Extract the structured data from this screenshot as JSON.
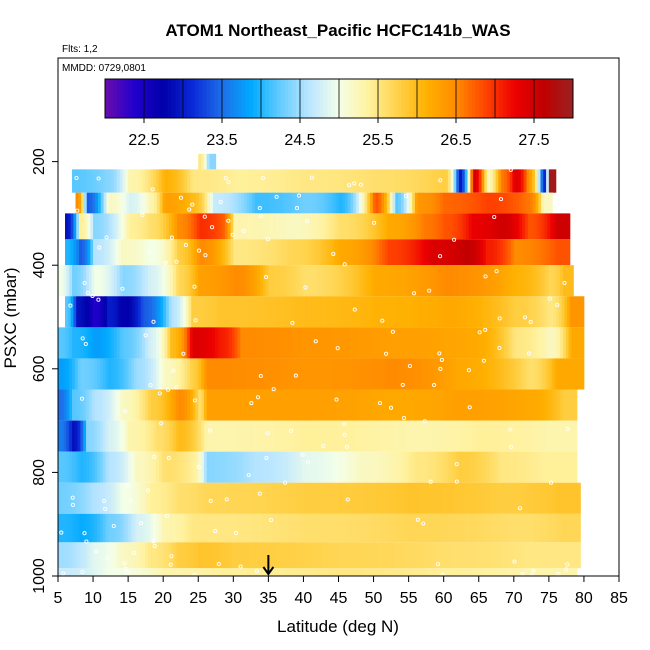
{
  "chart_data": {
    "type": "heatmap",
    "title": "ATOM1 Northeast_Pacific HCFC141b_WAS",
    "flights_label": "Flts: 1,2",
    "date_label": "MMDD: 0729,0801",
    "xlabel": "Latitude (deg N)",
    "ylabel": "PSXC (mbar)",
    "xlim": [
      5,
      85
    ],
    "ylim": [
      1000,
      0
    ],
    "x_ticks": [
      "5",
      "10",
      "15",
      "20",
      "25",
      "30",
      "35",
      "40",
      "45",
      "50",
      "55",
      "60",
      "65",
      "70",
      "75",
      "80",
      "85"
    ],
    "y_ticks": [
      "200",
      "400",
      "600",
      "800",
      "1000"
    ],
    "colorbar": {
      "min": 22.0,
      "max": 28.0,
      "ticks": [
        "22.5",
        "23.5",
        "24.5",
        "25.5",
        "26.5",
        "27.5"
      ],
      "colors": [
        "#6a0dad",
        "#2200cc",
        "#0000aa",
        "#0a2ad8",
        "#1e6ee8",
        "#00aaff",
        "#66ccff",
        "#bbe6ff",
        "#f4ffe8",
        "#fff2a0",
        "#ffd24a",
        "#ffb000",
        "#ff8c00",
        "#ff4400",
        "#ee0000",
        "#c00000",
        "#992222"
      ]
    },
    "arrow_latitude": 35,
    "bands": [
      {
        "p_top": 185,
        "p_bot": 215,
        "lat_min": 25.0,
        "lat_max": 27.5,
        "segments": [
          [
            25,
            25.5
          ],
          [
            26.3,
            24.4
          ]
        ]
      },
      {
        "p_top": 215,
        "p_bot": 260,
        "lat_min": 7.0,
        "lat_max": 76.0,
        "segments": [
          [
            7,
            24.2
          ],
          [
            12,
            24.4
          ],
          [
            15,
            25.3
          ],
          [
            20,
            26.1
          ],
          [
            24,
            25.5
          ],
          [
            30,
            25.4
          ],
          [
            40,
            25.5
          ],
          [
            50,
            25.6
          ],
          [
            60,
            25.8
          ],
          [
            62,
            22.9
          ],
          [
            64,
            27.5
          ],
          [
            66,
            25.2
          ],
          [
            68,
            26.6
          ],
          [
            70,
            27.4
          ],
          [
            72,
            26.3
          ],
          [
            74,
            22.9
          ],
          [
            75,
            27.9
          ]
        ]
      },
      {
        "p_top": 260,
        "p_bot": 300,
        "lat_min": 7.5,
        "lat_max": 75.5,
        "segments": [
          [
            7.5,
            26.5
          ],
          [
            9,
            23.4
          ],
          [
            12,
            25.2
          ],
          [
            15,
            24.8
          ],
          [
            18,
            25.3
          ],
          [
            20,
            26.3
          ],
          [
            24,
            26.0
          ],
          [
            27,
            24.7
          ],
          [
            33,
            24.1
          ],
          [
            40,
            24.3
          ],
          [
            45,
            24.0
          ],
          [
            50,
            26.8
          ],
          [
            53,
            24.2
          ],
          [
            56,
            26.4
          ],
          [
            60,
            26.7
          ],
          [
            66,
            26.9
          ],
          [
            72,
            26.6
          ],
          [
            74,
            25.2
          ]
        ]
      },
      {
        "p_top": 300,
        "p_bot": 350,
        "lat_min": 6.0,
        "lat_max": 78.0,
        "segments": [
          [
            6,
            22.9
          ],
          [
            8,
            25.4
          ],
          [
            10,
            24.4
          ],
          [
            15,
            25.4
          ],
          [
            18,
            25.6
          ],
          [
            22,
            26.5
          ],
          [
            25,
            27.0
          ],
          [
            28,
            26.8
          ],
          [
            30,
            25.3
          ],
          [
            38,
            25.2
          ],
          [
            45,
            25.6
          ],
          [
            52,
            26.2
          ],
          [
            57,
            26.6
          ],
          [
            60,
            26.8
          ],
          [
            64,
            27.3
          ],
          [
            68,
            27.5
          ],
          [
            72,
            26.8
          ],
          [
            76,
            27.5
          ]
        ]
      },
      {
        "p_top": 350,
        "p_bot": 400,
        "lat_min": 6.0,
        "lat_max": 78.0,
        "segments": [
          [
            6,
            24.0
          ],
          [
            8,
            23.4
          ],
          [
            10,
            24.6
          ],
          [
            14,
            25.2
          ],
          [
            18,
            25.0
          ],
          [
            22,
            25.8
          ],
          [
            25,
            26.5
          ],
          [
            30,
            25.5
          ],
          [
            38,
            25.7
          ],
          [
            45,
            26.2
          ],
          [
            52,
            26.9
          ],
          [
            58,
            27.4
          ],
          [
            63,
            27.6
          ],
          [
            66,
            27.1
          ],
          [
            70,
            26.5
          ],
          [
            76,
            26.8
          ]
        ]
      },
      {
        "p_top": 400,
        "p_bot": 460,
        "lat_min": 5.0,
        "lat_max": 78.5,
        "segments": [
          [
            5,
            25.0
          ],
          [
            7,
            24.3
          ],
          [
            10,
            25.0
          ],
          [
            14,
            24.4
          ],
          [
            18,
            24.8
          ],
          [
            22,
            25.7
          ],
          [
            25,
            26.3
          ],
          [
            30,
            26.5
          ],
          [
            35,
            25.8
          ],
          [
            40,
            25.6
          ],
          [
            50,
            26.2
          ],
          [
            60,
            26.5
          ],
          [
            70,
            26.1
          ],
          [
            75,
            25.7
          ],
          [
            77,
            26.0
          ]
        ]
      },
      {
        "p_top": 460,
        "p_bot": 520,
        "lat_min": 6.0,
        "lat_max": 80.0,
        "segments": [
          [
            6,
            24.2
          ],
          [
            7.5,
            22.9
          ],
          [
            10,
            22.4
          ],
          [
            12,
            23.0
          ],
          [
            14,
            22.7
          ],
          [
            17,
            23.4
          ],
          [
            21,
            24.6
          ],
          [
            24,
            25.8
          ],
          [
            28,
            25.9
          ],
          [
            40,
            26.0
          ],
          [
            50,
            26.1
          ],
          [
            60,
            26.2
          ],
          [
            70,
            25.8
          ],
          [
            75,
            25.5
          ],
          [
            78,
            26.4
          ]
        ]
      },
      {
        "p_top": 520,
        "p_bot": 580,
        "lat_min": 5.0,
        "lat_max": 80.0,
        "segments": [
          [
            5,
            24.2
          ],
          [
            7,
            24.0
          ],
          [
            10,
            23.8
          ],
          [
            14,
            24.2
          ],
          [
            18,
            24.8
          ],
          [
            21,
            26.0
          ],
          [
            24,
            27.4
          ],
          [
            28,
            27.1
          ],
          [
            31,
            26.5
          ],
          [
            40,
            26.4
          ],
          [
            52,
            26.3
          ],
          [
            64,
            26.2
          ],
          [
            70,
            25.5
          ],
          [
            75,
            25.2
          ],
          [
            78,
            26.2
          ]
        ]
      },
      {
        "p_top": 580,
        "p_bot": 640,
        "lat_min": 5.0,
        "lat_max": 80.0,
        "segments": [
          [
            5,
            23.8
          ],
          [
            8,
            24.3
          ],
          [
            12,
            24.0
          ],
          [
            16,
            24.5
          ],
          [
            20,
            25.2
          ],
          [
            24,
            25.8
          ],
          [
            26,
            26.5
          ],
          [
            40,
            26.4
          ],
          [
            52,
            26.5
          ],
          [
            62,
            26.2
          ],
          [
            72,
            25.6
          ],
          [
            76,
            26.2
          ]
        ]
      },
      {
        "p_top": 640,
        "p_bot": 700,
        "lat_min": 5.0,
        "lat_max": 79.0,
        "segments": [
          [
            5,
            23.5
          ],
          [
            7,
            24.2
          ],
          [
            10,
            24.6
          ],
          [
            14,
            25.2
          ],
          [
            18,
            25.8
          ],
          [
            22,
            26.5
          ],
          [
            25,
            25.6
          ],
          [
            26,
            26.3
          ],
          [
            40,
            26.3
          ],
          [
            52,
            26.2
          ],
          [
            62,
            26.3
          ],
          [
            72,
            26.2
          ],
          [
            77,
            25.8
          ]
        ]
      },
      {
        "p_top": 700,
        "p_bot": 760,
        "lat_min": 5.0,
        "lat_max": 79.0,
        "segments": [
          [
            5,
            23.6
          ],
          [
            7,
            22.9
          ],
          [
            9,
            24.4
          ],
          [
            12,
            24.8
          ],
          [
            15,
            25.3
          ],
          [
            19,
            25.6
          ],
          [
            22,
            26.0
          ],
          [
            26,
            25.3
          ],
          [
            40,
            25.4
          ],
          [
            55,
            25.3
          ],
          [
            65,
            25.4
          ],
          [
            75,
            25.3
          ]
        ]
      },
      {
        "p_top": 760,
        "p_bot": 820,
        "lat_min": 5.0,
        "lat_max": 79.0,
        "segments": [
          [
            5,
            24.2
          ],
          [
            8,
            24.0
          ],
          [
            12,
            24.6
          ],
          [
            16,
            25.2
          ],
          [
            20,
            25.6
          ],
          [
            24,
            25.4
          ],
          [
            26,
            24.4
          ],
          [
            33,
            24.6
          ],
          [
            40,
            24.9
          ],
          [
            48,
            25.2
          ],
          [
            56,
            25.5
          ],
          [
            62,
            25.8
          ],
          [
            68,
            25.5
          ],
          [
            74,
            25.4
          ]
        ]
      },
      {
        "p_top": 820,
        "p_bot": 880,
        "lat_min": 5.0,
        "lat_max": 79.5,
        "segments": [
          [
            5,
            24.3
          ],
          [
            10,
            24.6
          ],
          [
            14,
            25.0
          ],
          [
            18,
            25.4
          ],
          [
            22,
            25.6
          ],
          [
            26,
            25.7
          ],
          [
            40,
            25.8
          ],
          [
            55,
            25.9
          ],
          [
            68,
            25.8
          ],
          [
            76,
            25.9
          ]
        ]
      },
      {
        "p_top": 880,
        "p_bot": 935,
        "lat_min": 5.0,
        "lat_max": 79.5,
        "segments": [
          [
            5,
            24.0
          ],
          [
            8,
            23.9
          ],
          [
            12,
            24.3
          ],
          [
            16,
            24.8
          ],
          [
            20,
            25.3
          ],
          [
            24,
            25.5
          ],
          [
            26,
            25.5
          ],
          [
            40,
            25.6
          ],
          [
            55,
            25.7
          ],
          [
            70,
            25.6
          ],
          [
            77,
            25.7
          ]
        ]
      },
      {
        "p_top": 935,
        "p_bot": 985,
        "lat_min": 5.0,
        "lat_max": 79.5,
        "segments": [
          [
            5,
            24.5
          ],
          [
            10,
            24.9
          ],
          [
            14,
            25.2
          ],
          [
            18,
            25.5
          ],
          [
            22,
            25.8
          ],
          [
            25,
            25.9
          ],
          [
            30,
            25.8
          ],
          [
            45,
            25.7
          ],
          [
            60,
            25.6
          ],
          [
            72,
            25.5
          ]
        ]
      },
      {
        "p_top": 985,
        "p_bot": 1000,
        "lat_min": 5.0,
        "lat_max": 79.0,
        "segments": [
          [
            5,
            24.7
          ],
          [
            12,
            25.0
          ],
          [
            20,
            25.3
          ],
          [
            28,
            25.4
          ],
          [
            45,
            25.5
          ],
          [
            60,
            25.4
          ],
          [
            72,
            25.3
          ]
        ]
      }
    ]
  }
}
